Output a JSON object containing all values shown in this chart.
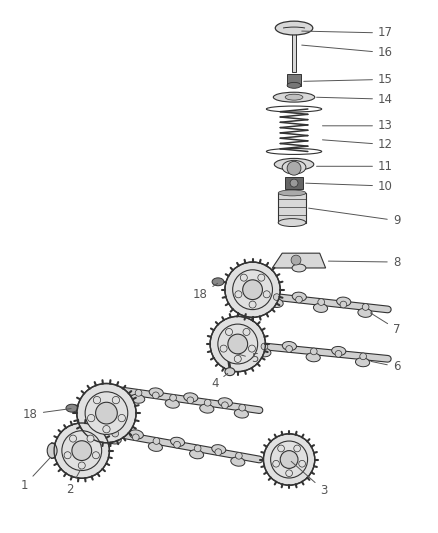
{
  "background_color": "#ffffff",
  "line_color": "#333333",
  "label_color": "#555555",
  "figsize": [
    4.38,
    5.33
  ],
  "dpi": 100,
  "gear_fill": "#e0e0e0",
  "shaft_fill": "#d0d0d0",
  "component_fill": "#d8d8d8"
}
